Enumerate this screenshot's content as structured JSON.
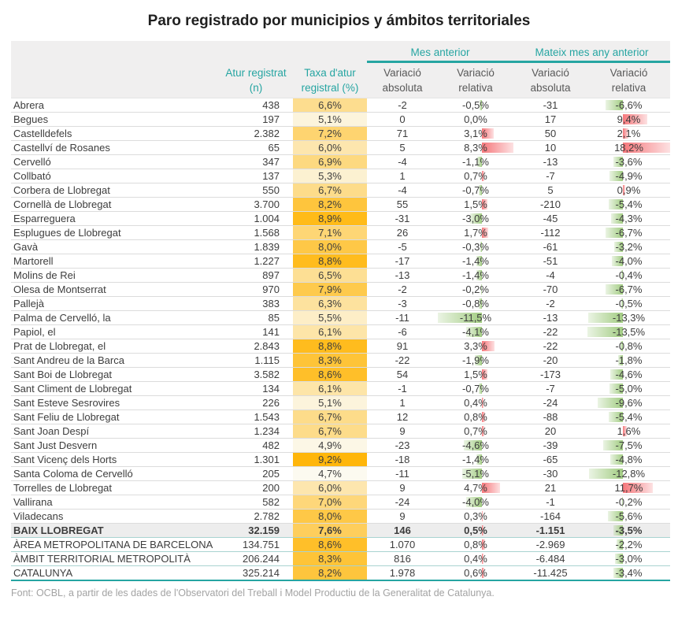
{
  "title": "Paro registrado por municipios y ámbitos territoriales",
  "footer": "Font: OCBL, a partir de les dades de l'Observatori del Treball i Model Productiu de la Generalitat de Catalunya.",
  "header": {
    "atur_line1": "Atur registrat",
    "atur_line2": "(n)",
    "taxa_line1": "Taxa d'atur",
    "taxa_line2": "registral (%)",
    "group_month": "Mes anterior",
    "group_year": "Mateix mes any anterior",
    "col_abs_line1": "Variació",
    "col_abs_line2": "absoluta",
    "col_rel_line1": "Variació",
    "col_rel_line2": "relativa"
  },
  "colors": {
    "accent_teal": "#26A5A2",
    "header_text_gray": "#595959",
    "taxa_scale_min": "#FCFAF0",
    "taxa_scale_max": "#FFB60A",
    "bar_negative_green": "#A2CC82",
    "bar_positive_red": "#F5777B",
    "summary_row_bg": "#EDEDED"
  },
  "chart_data": {
    "type": "table",
    "columns": [
      "Municipi",
      "Atur registrat (n)",
      "Taxa d'atur registral (%)",
      "Mes anterior - Variació absoluta",
      "Mes anterior - Variació relativa",
      "Mateix mes any anterior - Variació absoluta",
      "Mateix mes any anterior - Variació relativa"
    ],
    "rows": [
      {
        "name": "Abrera",
        "atur": "438",
        "taxa": "6,6%",
        "mes_abs": "-2",
        "mes_rel": "-0,5%",
        "any_abs": "-31",
        "any_rel": "-6,6%"
      },
      {
        "name": "Begues",
        "atur": "197",
        "taxa": "5,1%",
        "mes_abs": "0",
        "mes_rel": "0,0%",
        "any_abs": "17",
        "any_rel": "9,4%"
      },
      {
        "name": "Castelldefels",
        "atur": "2.382",
        "taxa": "7,2%",
        "mes_abs": "71",
        "mes_rel": "3,1%",
        "any_abs": "50",
        "any_rel": "2,1%"
      },
      {
        "name": "Castellví de Rosanes",
        "atur": "65",
        "taxa": "6,0%",
        "mes_abs": "5",
        "mes_rel": "8,3%",
        "any_abs": "10",
        "any_rel": "18,2%"
      },
      {
        "name": "Cervelló",
        "atur": "347",
        "taxa": "6,9%",
        "mes_abs": "-4",
        "mes_rel": "-1,1%",
        "any_abs": "-13",
        "any_rel": "-3,6%"
      },
      {
        "name": "Collbató",
        "atur": "137",
        "taxa": "5,3%",
        "mes_abs": "1",
        "mes_rel": "0,7%",
        "any_abs": "-7",
        "any_rel": "-4,9%"
      },
      {
        "name": "Corbera de Llobregat",
        "atur": "550",
        "taxa": "6,7%",
        "mes_abs": "-4",
        "mes_rel": "-0,7%",
        "any_abs": "5",
        "any_rel": "0,9%"
      },
      {
        "name": "Cornellà de Llobregat",
        "atur": "3.700",
        "taxa": "8,2%",
        "mes_abs": "55",
        "mes_rel": "1,5%",
        "any_abs": "-210",
        "any_rel": "-5,4%"
      },
      {
        "name": "Esparreguera",
        "atur": "1.004",
        "taxa": "8,9%",
        "mes_abs": "-31",
        "mes_rel": "-3,0%",
        "any_abs": "-45",
        "any_rel": "-4,3%"
      },
      {
        "name": "Esplugues de Llobregat",
        "atur": "1.568",
        "taxa": "7,1%",
        "mes_abs": "26",
        "mes_rel": "1,7%",
        "any_abs": "-112",
        "any_rel": "-6,7%"
      },
      {
        "name": "Gavà",
        "atur": "1.839",
        "taxa": "8,0%",
        "mes_abs": "-5",
        "mes_rel": "-0,3%",
        "any_abs": "-61",
        "any_rel": "-3,2%"
      },
      {
        "name": "Martorell",
        "atur": "1.227",
        "taxa": "8,8%",
        "mes_abs": "-17",
        "mes_rel": "-1,4%",
        "any_abs": "-51",
        "any_rel": "-4,0%"
      },
      {
        "name": "Molins de Rei",
        "atur": "897",
        "taxa": "6,5%",
        "mes_abs": "-13",
        "mes_rel": "-1,4%",
        "any_abs": "-4",
        "any_rel": "-0,4%"
      },
      {
        "name": "Olesa de Montserrat",
        "atur": "970",
        "taxa": "7,9%",
        "mes_abs": "-2",
        "mes_rel": "-0,2%",
        "any_abs": "-70",
        "any_rel": "-6,7%"
      },
      {
        "name": "Pallejà",
        "atur": "383",
        "taxa": "6,3%",
        "mes_abs": "-3",
        "mes_rel": "-0,8%",
        "any_abs": "-2",
        "any_rel": "-0,5%"
      },
      {
        "name": "Palma de Cervelló, la",
        "atur": "85",
        "taxa": "5,5%",
        "mes_abs": "-11",
        "mes_rel": "-11,5%",
        "any_abs": "-13",
        "any_rel": "-13,3%"
      },
      {
        "name": "Papiol, el",
        "atur": "141",
        "taxa": "6,1%",
        "mes_abs": "-6",
        "mes_rel": "-4,1%",
        "any_abs": "-22",
        "any_rel": "-13,5%"
      },
      {
        "name": "Prat de Llobregat, el",
        "atur": "2.843",
        "taxa": "8,8%",
        "mes_abs": "91",
        "mes_rel": "3,3%",
        "any_abs": "-22",
        "any_rel": "-0,8%"
      },
      {
        "name": "Sant Andreu de la Barca",
        "atur": "1.115",
        "taxa": "8,3%",
        "mes_abs": "-22",
        "mes_rel": "-1,9%",
        "any_abs": "-20",
        "any_rel": "-1,8%"
      },
      {
        "name": "Sant Boi de Llobregat",
        "atur": "3.582",
        "taxa": "8,6%",
        "mes_abs": "54",
        "mes_rel": "1,5%",
        "any_abs": "-173",
        "any_rel": "-4,6%"
      },
      {
        "name": "Sant Climent de Llobregat",
        "atur": "134",
        "taxa": "6,1%",
        "mes_abs": "-1",
        "mes_rel": "-0,7%",
        "any_abs": "-7",
        "any_rel": "-5,0%"
      },
      {
        "name": "Sant Esteve Sesrovires",
        "atur": "226",
        "taxa": "5,1%",
        "mes_abs": "1",
        "mes_rel": "0,4%",
        "any_abs": "-24",
        "any_rel": "-9,6%"
      },
      {
        "name": "Sant Feliu de Llobregat",
        "atur": "1.543",
        "taxa": "6,7%",
        "mes_abs": "12",
        "mes_rel": "0,8%",
        "any_abs": "-88",
        "any_rel": "-5,4%"
      },
      {
        "name": "Sant Joan Despí",
        "atur": "1.234",
        "taxa": "6,7%",
        "mes_abs": "9",
        "mes_rel": "0,7%",
        "any_abs": "20",
        "any_rel": "1,6%"
      },
      {
        "name": "Sant Just Desvern",
        "atur": "482",
        "taxa": "4,9%",
        "mes_abs": "-23",
        "mes_rel": "-4,6%",
        "any_abs": "-39",
        "any_rel": "-7,5%"
      },
      {
        "name": "Sant Vicenç dels Horts",
        "atur": "1.301",
        "taxa": "9,2%",
        "mes_abs": "-18",
        "mes_rel": "-1,4%",
        "any_abs": "-65",
        "any_rel": "-4,8%"
      },
      {
        "name": "Santa Coloma de Cervelló",
        "atur": "205",
        "taxa": "4,7%",
        "mes_abs": "-11",
        "mes_rel": "-5,1%",
        "any_abs": "-30",
        "any_rel": "-12,8%"
      },
      {
        "name": "Torrelles de Llobregat",
        "atur": "200",
        "taxa": "6,0%",
        "mes_abs": "9",
        "mes_rel": "4,7%",
        "any_abs": "21",
        "any_rel": "11,7%"
      },
      {
        "name": "Vallirana",
        "atur": "582",
        "taxa": "7,0%",
        "mes_abs": "-24",
        "mes_rel": "-4,0%",
        "any_abs": "-1",
        "any_rel": "-0,2%"
      },
      {
        "name": "Viladecans",
        "atur": "2.782",
        "taxa": "8,0%",
        "mes_abs": "9",
        "mes_rel": "0,3%",
        "any_abs": "-164",
        "any_rel": "-5,6%"
      }
    ],
    "summary_rows": [
      {
        "name": "BAIX LLOBREGAT",
        "atur": "32.159",
        "taxa": "7,6%",
        "mes_abs": "146",
        "mes_rel": "0,5%",
        "any_abs": "-1.151",
        "any_rel": "-3,5%"
      },
      {
        "name": "ÀREA METROPOLITANA DE BARCELONA",
        "atur": "134.751",
        "taxa": "8,6%",
        "mes_abs": "1.070",
        "mes_rel": "0,8%",
        "any_abs": "-2.969",
        "any_rel": "-2,2%"
      },
      {
        "name": "ÀMBIT TERRITORIAL METROPOLITÀ",
        "atur": "206.244",
        "taxa": "8,3%",
        "mes_abs": "816",
        "mes_rel": "0,4%",
        "any_abs": "-6.484",
        "any_rel": "-3,0%"
      },
      {
        "name": "CATALUNYA",
        "atur": "325.214",
        "taxa": "8,2%",
        "mes_abs": "1.978",
        "mes_rel": "0,6%",
        "any_abs": "-11.425",
        "any_rel": "-3,4%"
      }
    ]
  }
}
